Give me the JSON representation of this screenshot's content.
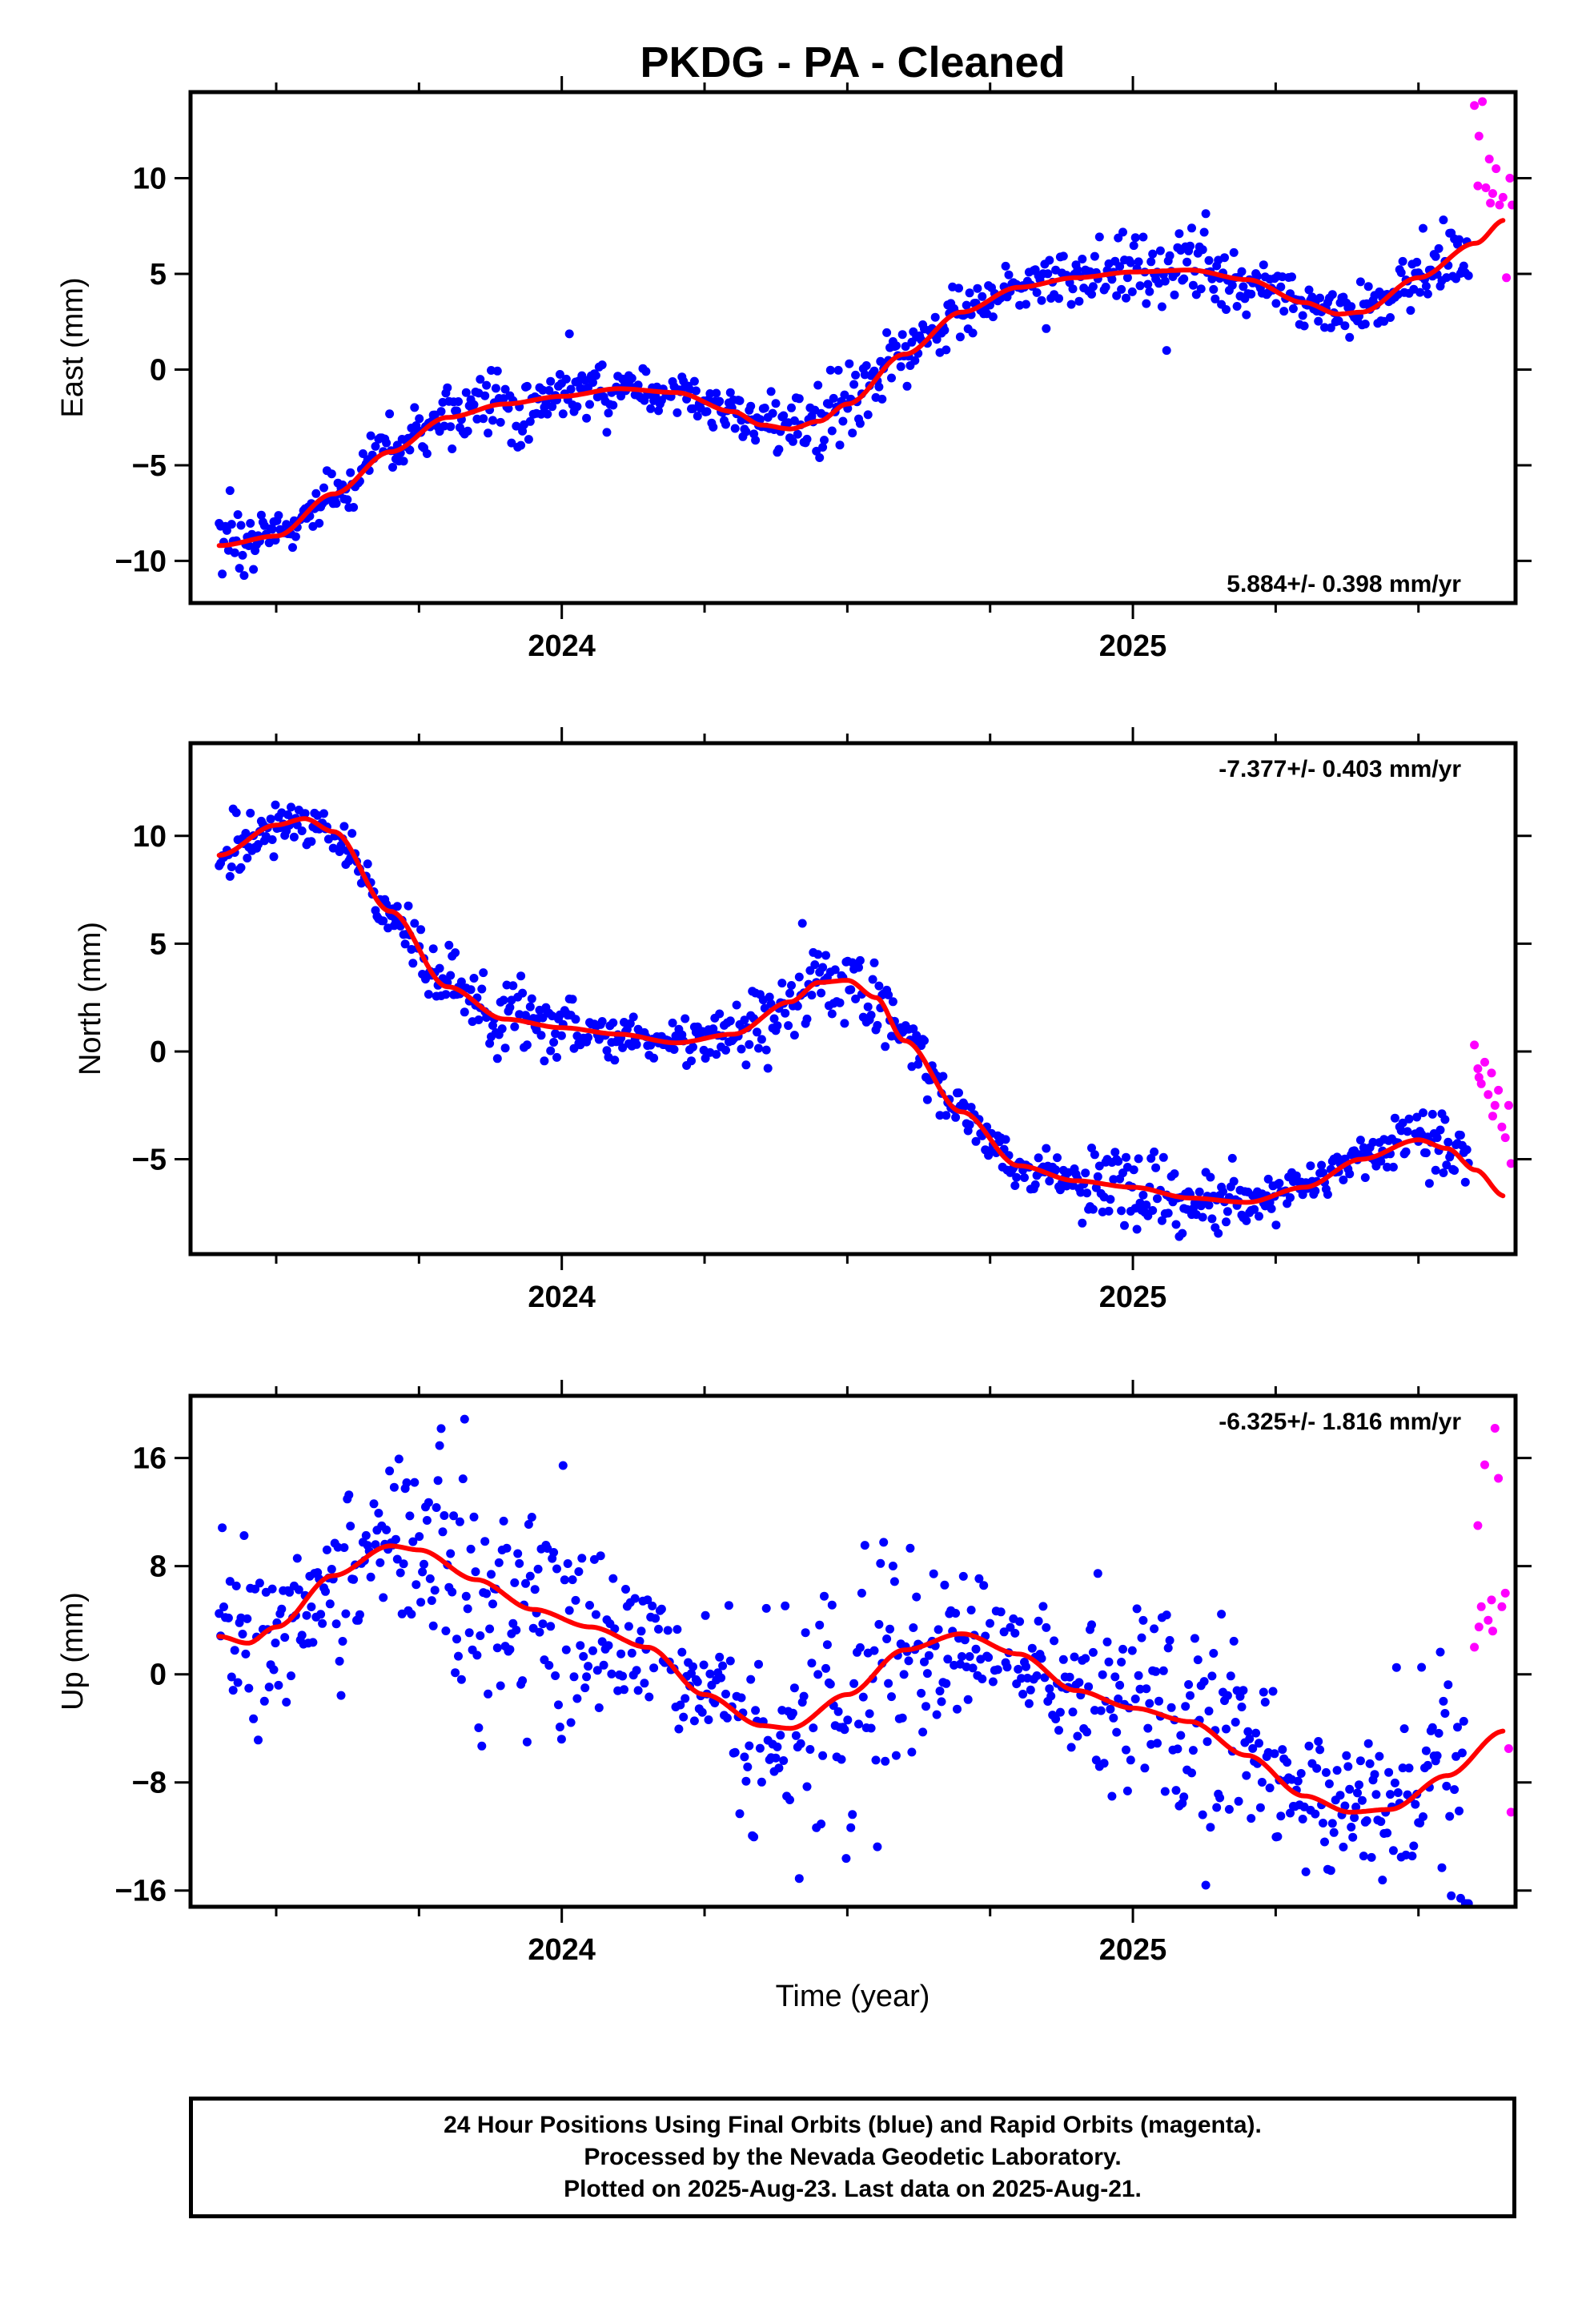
{
  "title": "PKDG  - PA - Cleaned",
  "xlabel": "Time (year)",
  "footer": {
    "line1": "24 Hour Positions Using Final Orbits (blue) and Rapid Orbits (magenta).",
    "line2": "Processed by the Nevada Geodetic Laboratory.",
    "line3": "Plotted on 2025-Aug-23. Last data on 2025-Aug-21."
  },
  "colors": {
    "final": "#0000ff",
    "rapid": "#ff00ff",
    "fit": "#ff0000"
  },
  "chart_data": [
    {
      "type": "scatter",
      "component": "East",
      "ylabel": "East (mm)",
      "rate": "5.884+/- 0.398 mm/yr",
      "xlim": [
        2023.35,
        2025.67
      ],
      "ylim": [
        -12.2,
        14.5
      ],
      "yticks": [
        10,
        5,
        0,
        -5,
        -10
      ],
      "xticks": [
        2024,
        2025
      ],
      "fit_knots": [
        [
          2023.4,
          -9.2
        ],
        [
          2023.5,
          -8.7
        ],
        [
          2023.6,
          -6.5
        ],
        [
          2023.7,
          -4.3
        ],
        [
          2023.8,
          -2.5
        ],
        [
          2023.9,
          -1.8
        ],
        [
          2024.0,
          -1.4
        ],
        [
          2024.1,
          -1.0
        ],
        [
          2024.2,
          -1.2
        ],
        [
          2024.3,
          -2.2
        ],
        [
          2024.35,
          -2.9
        ],
        [
          2024.4,
          -3.1
        ],
        [
          2024.45,
          -2.7
        ],
        [
          2024.5,
          -1.8
        ],
        [
          2024.6,
          0.8
        ],
        [
          2024.7,
          3.0
        ],
        [
          2024.8,
          4.3
        ],
        [
          2024.9,
          4.8
        ],
        [
          2025.0,
          5.1
        ],
        [
          2025.1,
          5.2
        ],
        [
          2025.2,
          4.7
        ],
        [
          2025.3,
          3.5
        ],
        [
          2025.36,
          2.9
        ],
        [
          2025.4,
          3.0
        ],
        [
          2025.5,
          4.8
        ],
        [
          2025.6,
          6.6
        ],
        [
          2025.65,
          7.8
        ]
      ],
      "noise": 1.0,
      "final_end": 2025.59,
      "rapid_points": [
        [
          2025.598,
          13.8
        ],
        [
          2025.606,
          12.2
        ],
        [
          2025.612,
          14.0
        ],
        [
          2025.618,
          9.5
        ],
        [
          2025.624,
          11.0
        ],
        [
          2025.63,
          9.2
        ],
        [
          2025.636,
          10.5
        ],
        [
          2025.642,
          8.6
        ],
        [
          2025.648,
          9.0
        ],
        [
          2025.654,
          4.8
        ],
        [
          2025.66,
          10.0
        ],
        [
          2025.664,
          8.6
        ],
        [
          2025.604,
          9.6
        ],
        [
          2025.626,
          8.7
        ]
      ]
    },
    {
      "type": "scatter",
      "component": "North",
      "ylabel": "North (mm)",
      "rate": "-7.377+/- 0.403 mm/yr",
      "xlim": [
        2023.35,
        2025.67
      ],
      "ylim": [
        -9.4,
        14.3
      ],
      "yticks": [
        10,
        5,
        0,
        -5
      ],
      "xticks": [
        2024,
        2025
      ],
      "fit_knots": [
        [
          2023.4,
          9.1
        ],
        [
          2023.5,
          10.5
        ],
        [
          2023.55,
          10.8
        ],
        [
          2023.6,
          10.2
        ],
        [
          2023.7,
          6.5
        ],
        [
          2023.8,
          3.0
        ],
        [
          2023.9,
          1.5
        ],
        [
          2024.0,
          1.1
        ],
        [
          2024.1,
          0.8
        ],
        [
          2024.2,
          0.4
        ],
        [
          2024.3,
          0.8
        ],
        [
          2024.4,
          2.3
        ],
        [
          2024.45,
          3.2
        ],
        [
          2024.5,
          3.3
        ],
        [
          2024.55,
          2.5
        ],
        [
          2024.6,
          0.5
        ],
        [
          2024.7,
          -2.8
        ],
        [
          2024.8,
          -5.3
        ],
        [
          2024.9,
          -6.0
        ],
        [
          2025.0,
          -6.3
        ],
        [
          2025.1,
          -6.8
        ],
        [
          2025.2,
          -7.0
        ],
        [
          2025.3,
          -6.3
        ],
        [
          2025.4,
          -5.0
        ],
        [
          2025.5,
          -4.1
        ],
        [
          2025.55,
          -4.5
        ],
        [
          2025.6,
          -5.5
        ],
        [
          2025.65,
          -6.7
        ]
      ],
      "noise": 0.8,
      "final_end": 2025.59,
      "rapid_points": [
        [
          2025.598,
          0.3
        ],
        [
          2025.604,
          -0.8
        ],
        [
          2025.61,
          -1.5
        ],
        [
          2025.616,
          -0.5
        ],
        [
          2025.622,
          -2.0
        ],
        [
          2025.628,
          -1.0
        ],
        [
          2025.634,
          -2.5
        ],
        [
          2025.64,
          -1.8
        ],
        [
          2025.646,
          -3.5
        ],
        [
          2025.652,
          -4.0
        ],
        [
          2025.658,
          -2.5
        ],
        [
          2025.662,
          -5.2
        ],
        [
          2025.606,
          -1.2
        ],
        [
          2025.63,
          -3.0
        ]
      ]
    },
    {
      "type": "scatter",
      "component": "Up",
      "ylabel": "Up (mm)",
      "rate": "-6.325+/- 1.816 mm/yr",
      "xlim": [
        2023.35,
        2025.67
      ],
      "ylim": [
        -17.2,
        20.6
      ],
      "yticks": [
        16,
        8,
        0,
        -8,
        -16
      ],
      "xticks": [
        2024,
        2025
      ],
      "fit_knots": [
        [
          2023.4,
          2.8
        ],
        [
          2023.45,
          2.3
        ],
        [
          2023.5,
          3.5
        ],
        [
          2023.6,
          7.3
        ],
        [
          2023.7,
          9.5
        ],
        [
          2023.75,
          9.2
        ],
        [
          2023.85,
          7.0
        ],
        [
          2023.95,
          4.8
        ],
        [
          2024.05,
          3.5
        ],
        [
          2024.15,
          2.0
        ],
        [
          2024.25,
          -1.5
        ],
        [
          2024.35,
          -3.8
        ],
        [
          2024.4,
          -4.0
        ],
        [
          2024.5,
          -1.5
        ],
        [
          2024.6,
          1.8
        ],
        [
          2024.7,
          3.0
        ],
        [
          2024.8,
          1.5
        ],
        [
          2024.9,
          -1.2
        ],
        [
          2025.0,
          -2.5
        ],
        [
          2025.1,
          -3.5
        ],
        [
          2025.2,
          -6.0
        ],
        [
          2025.3,
          -9.0
        ],
        [
          2025.38,
          -10.2
        ],
        [
          2025.45,
          -10.0
        ],
        [
          2025.55,
          -7.5
        ],
        [
          2025.65,
          -4.2
        ]
      ],
      "noise": 4.2,
      "final_end": 2025.59,
      "rapid_points": [
        [
          2025.598,
          2.0
        ],
        [
          2025.604,
          11.0
        ],
        [
          2025.61,
          5.0
        ],
        [
          2025.616,
          15.5
        ],
        [
          2025.622,
          4.0
        ],
        [
          2025.628,
          5.5
        ],
        [
          2025.634,
          18.2
        ],
        [
          2025.64,
          14.5
        ],
        [
          2025.646,
          5.0
        ],
        [
          2025.652,
          6.0
        ],
        [
          2025.658,
          -5.5
        ],
        [
          2025.662,
          -10.2
        ],
        [
          2025.606,
          3.5
        ],
        [
          2025.63,
          3.2
        ]
      ]
    }
  ]
}
